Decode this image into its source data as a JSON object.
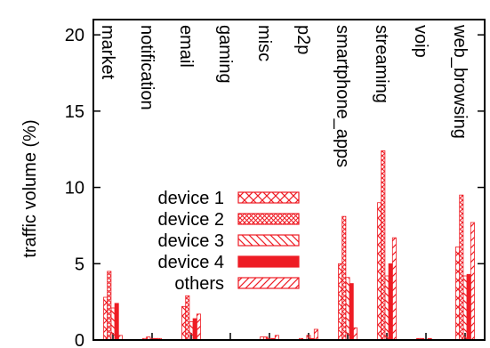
{
  "chart_data": {
    "type": "bar",
    "title": "",
    "xlabel": "",
    "ylabel": "traffic volume (%)",
    "ylim": [
      0,
      21
    ],
    "yticks": [
      "0",
      "5",
      "10",
      "15",
      "20"
    ],
    "grid": false,
    "legend_position": "center-left",
    "categories": [
      "market",
      "notification",
      "email",
      "gaming",
      "misc",
      "p2p",
      "smartphone_apps",
      "streaming",
      "voip",
      "web_browsing"
    ],
    "series": [
      {
        "name": "device 1",
        "values": [
          2.8,
          0.1,
          2.2,
          0.0,
          0.2,
          0.1,
          5.0,
          9.0,
          0.1,
          6.1
        ]
      },
      {
        "name": "device 2",
        "values": [
          4.5,
          0.2,
          2.9,
          0.0,
          0.2,
          0.0,
          8.1,
          12.4,
          0.1,
          9.5
        ]
      },
      {
        "name": "device 3",
        "values": [
          2.1,
          0.1,
          1.2,
          0.0,
          0.1,
          0.3,
          4.1,
          4.2,
          0.0,
          4.2
        ]
      },
      {
        "name": "device 4",
        "values": [
          2.4,
          0.1,
          1.4,
          0.0,
          0.1,
          0.1,
          3.7,
          5.0,
          0.1,
          4.3
        ]
      },
      {
        "name": "others",
        "values": [
          0.3,
          0.1,
          1.7,
          0.0,
          0.3,
          0.7,
          0.8,
          6.7,
          0.0,
          7.7
        ]
      }
    ],
    "colors": {
      "stroke": "#ee1c24",
      "axis": "#000000"
    },
    "patterns": [
      "crosshatch-coarse",
      "crosshatch-fine",
      "diagonal-left",
      "solid",
      "diagonal-right"
    ]
  }
}
